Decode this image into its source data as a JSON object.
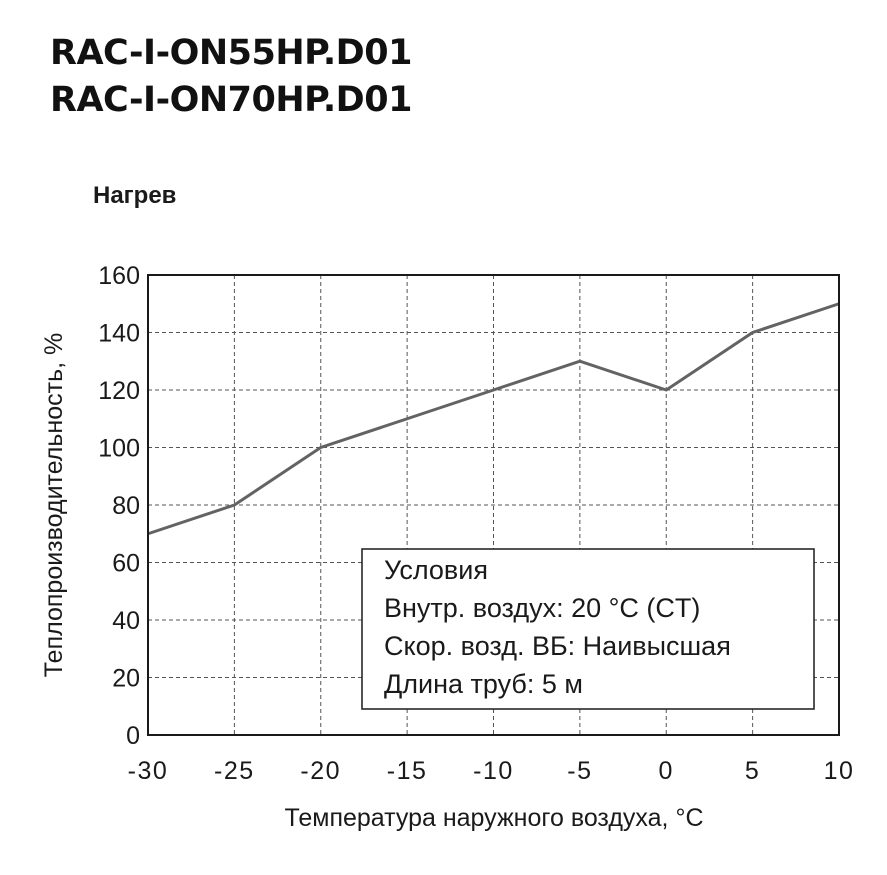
{
  "header": {
    "model_lines": [
      "RAC-I-ON55HP.D01",
      "RAC-I-ON70HP.D01"
    ]
  },
  "chart_data": {
    "type": "line",
    "title": "Нагрев",
    "xlabel": "Температура наружного воздуха, °C",
    "ylabel": "Теплопроизводительность, %",
    "x": [
      -30,
      -25,
      -20,
      -15,
      -10,
      -5,
      0,
      5,
      10
    ],
    "series": [
      {
        "values": [
          70,
          80,
          100,
          110,
          120,
          130,
          120,
          140,
          150
        ]
      }
    ],
    "xlim": [
      -30,
      10
    ],
    "ylim": [
      0,
      160
    ],
    "xticks": [
      "-30",
      "-25",
      "-20",
      "-15",
      "-10",
      "-5",
      "0",
      "5",
      "10"
    ],
    "yticks": [
      "0",
      "20",
      "40",
      "60",
      "80",
      "100",
      "120",
      "140",
      "160"
    ],
    "grid": "dashed",
    "line_color": "#636363",
    "annotation": {
      "placement": "bottom-right",
      "lines": [
        "Условия",
        "Внутр. воздух: 20 °C (CT)",
        "Скор. возд. ВБ: Наивысшая",
        "Длина труб: 5 м"
      ]
    }
  }
}
